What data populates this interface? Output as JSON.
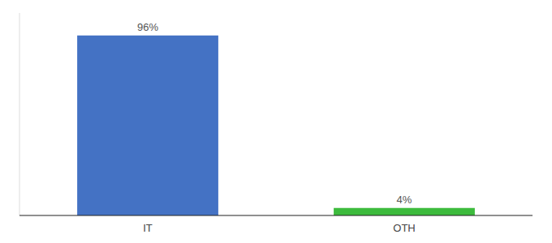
{
  "chart_data": {
    "type": "bar",
    "categories": [
      "IT",
      "OTH"
    ],
    "values": [
      96,
      4
    ],
    "value_labels": [
      "96%",
      "4%"
    ],
    "colors": [
      "#4472c4",
      "#3dbb3d"
    ],
    "ylim": [
      0,
      108
    ],
    "data_labels": true,
    "tick_labels": "x"
  }
}
